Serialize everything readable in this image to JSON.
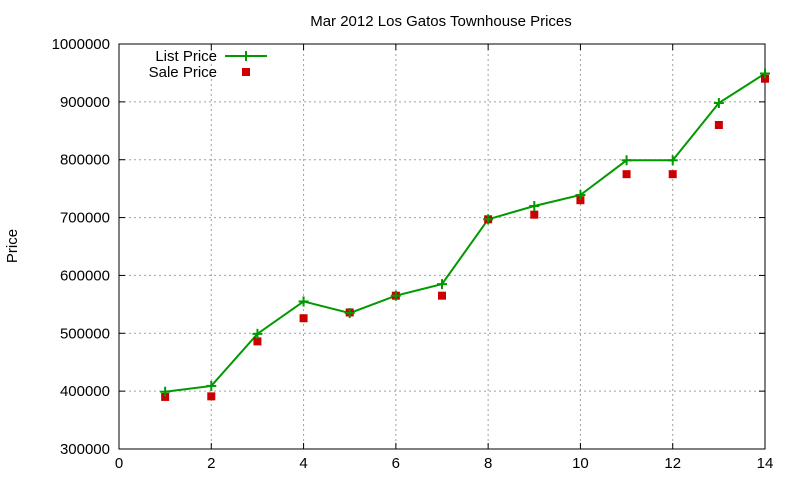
{
  "chart_data": {
    "type": "line",
    "title": "Mar 2012 Los Gatos Townhouse Prices",
    "xlabel": "",
    "ylabel": "Price",
    "xlim": [
      0,
      14
    ],
    "ylim": [
      300000,
      1000000
    ],
    "xticks": [
      0,
      2,
      4,
      6,
      8,
      10,
      12,
      14
    ],
    "yticks": [
      300000,
      400000,
      500000,
      600000,
      700000,
      800000,
      900000,
      1000000
    ],
    "grid": true,
    "legend_position": "top-left",
    "series": [
      {
        "name": "List Price",
        "style": "line-with-plus-markers",
        "color": "#009900",
        "x": [
          1,
          2,
          3,
          4,
          5,
          6,
          7,
          8,
          9,
          10,
          11,
          12,
          13,
          14
        ],
        "y": [
          399000,
          409000,
          499000,
          555000,
          535000,
          565000,
          585000,
          697000,
          720000,
          739000,
          799000,
          799000,
          898000,
          949000
        ]
      },
      {
        "name": "Sale Price",
        "style": "square-markers",
        "color": "#cc0000",
        "x": [
          1,
          2,
          3,
          4,
          5,
          6,
          7,
          8,
          9,
          10,
          11,
          12,
          13,
          14
        ],
        "y": [
          390000,
          391000,
          486000,
          526000,
          536000,
          565000,
          565000,
          697000,
          705000,
          730000,
          775000,
          775000,
          860000,
          940000
        ]
      }
    ]
  }
}
